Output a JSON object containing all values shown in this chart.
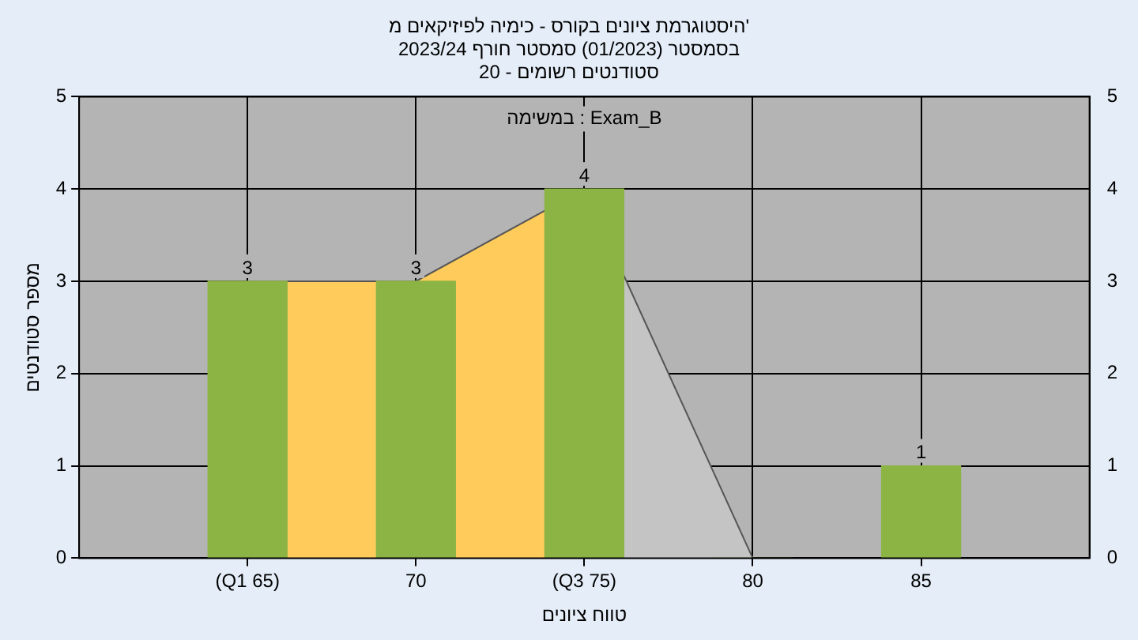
{
  "chart_data": {
    "type": "bar",
    "title": "היסטוגרמת ציונים בקורס - כימיה לפיזיקאים מ'",
    "subtitle": "בסמסטר (01/2023) סמסטר חורף 2023/24\nסטודנטים רשומים - 20",
    "xlabel": "טווח ציונים",
    "ylabel": "מספר סטודנטים",
    "annotations": [
      "במשימה : Exam_B"
    ],
    "x": [
      65,
      70,
      75,
      80,
      85
    ],
    "xlim": [
      60,
      90
    ],
    "xticks": [
      {
        "value": 65,
        "label": "(Q1 65)"
      },
      70,
      {
        "value": 75,
        "label": "(Q3 75)"
      },
      80,
      85
    ],
    "ylim": [
      0,
      5
    ],
    "yticks": [
      0,
      1,
      2,
      3,
      4,
      5
    ],
    "y2lim": [
      0,
      5
    ],
    "y2ticks": [
      0,
      1,
      2,
      3,
      4,
      5
    ],
    "grid": true,
    "legend": false,
    "series": [
      {
        "color": "#8cb445",
        "values": [
          3,
          3,
          4,
          0,
          1
        ],
        "value_labels": [
          "3",
          "3",
          "4",
          null,
          "1"
        ]
      },
      {
        "type": "area",
        "x": [
          65,
          70,
          75
        ],
        "values": [
          3,
          3,
          4
        ],
        "color": "#ffcc5c"
      },
      {
        "type": "area",
        "x": [
          75,
          80
        ],
        "values": [
          4,
          0
        ],
        "color": "#c4c4c4"
      }
    ]
  }
}
